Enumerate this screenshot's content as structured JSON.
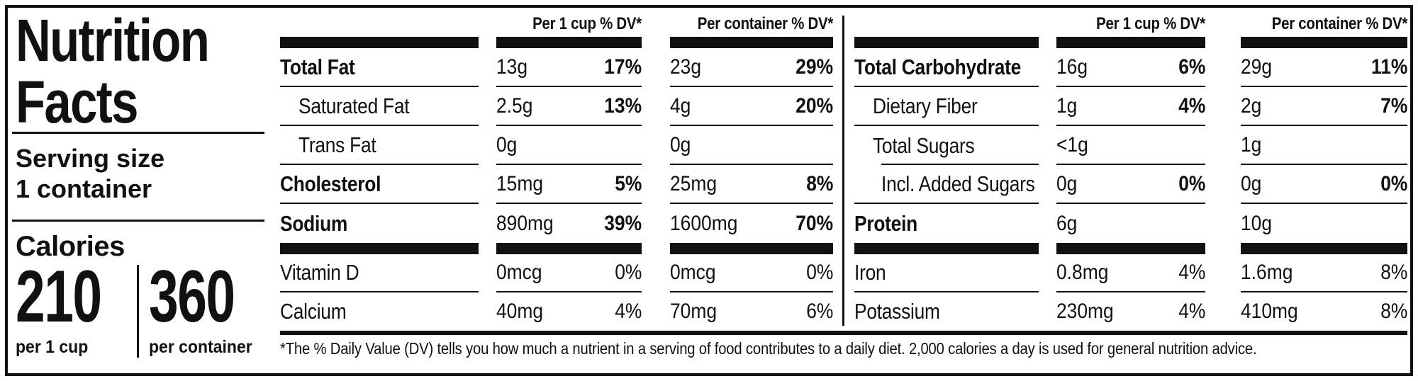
{
  "colors": {
    "ink": "#111111",
    "paper": "#ffffff"
  },
  "header_panel": {
    "title_line1": "Nutrition",
    "title_line2": "Facts",
    "serving_size_label": "Serving size",
    "serving_size_value": "1 container",
    "calories": {
      "label": "Calories",
      "per_cup_value": "210",
      "per_cup_caption": "per 1 cup",
      "per_container_value": "360",
      "per_container_caption": "per container"
    }
  },
  "column_headers": {
    "per_cup": "Per 1 cup % DV*",
    "per_container": "Per container % DV*"
  },
  "nutrient_table_left": {
    "main_rows": [
      {
        "name": "Total Fat",
        "name_bold": true,
        "indent": 0,
        "cup_amount": "13g",
        "cup_dv": "17%",
        "cont_amount": "23g",
        "cont_dv": "29%",
        "dv_bold": true
      },
      {
        "name": "Saturated Fat",
        "name_bold": false,
        "indent": 1,
        "cup_amount": "2.5g",
        "cup_dv": "13%",
        "cont_amount": "4g",
        "cont_dv": "20%",
        "dv_bold": true
      },
      {
        "name": "Trans Fat",
        "name_bold": false,
        "indent": 1,
        "cup_amount": "0g",
        "cup_dv": "",
        "cont_amount": "0g",
        "cont_dv": "",
        "dv_bold": false
      },
      {
        "name": "Cholesterol",
        "name_bold": true,
        "indent": 0,
        "cup_amount": "15mg",
        "cup_dv": "5%",
        "cont_amount": "25mg",
        "cont_dv": "8%",
        "dv_bold": true
      },
      {
        "name": "Sodium",
        "name_bold": true,
        "indent": 0,
        "cup_amount": "890mg",
        "cup_dv": "39%",
        "cont_amount": "1600mg",
        "cont_dv": "70%",
        "dv_bold": true
      }
    ],
    "micro_rows": [
      {
        "name": "Vitamin D",
        "name_bold": false,
        "indent": 0,
        "cup_amount": "0mcg",
        "cup_dv": "0%",
        "cont_amount": "0mcg",
        "cont_dv": "0%",
        "dv_bold": false
      },
      {
        "name": "Calcium",
        "name_bold": false,
        "indent": 0,
        "cup_amount": "40mg",
        "cup_dv": "4%",
        "cont_amount": "70mg",
        "cont_dv": "6%",
        "dv_bold": false
      }
    ]
  },
  "nutrient_table_right": {
    "main_rows": [
      {
        "name": "Total Carbohydrate",
        "name_bold": true,
        "indent": 0,
        "cup_amount": "16g",
        "cup_dv": "6%",
        "cont_amount": "29g",
        "cont_dv": "11%",
        "dv_bold": true
      },
      {
        "name": "Dietary Fiber",
        "name_bold": false,
        "indent": 1,
        "cup_amount": "1g",
        "cup_dv": "4%",
        "cont_amount": "2g",
        "cont_dv": "7%",
        "dv_bold": true
      },
      {
        "name": "Total Sugars",
        "name_bold": false,
        "indent": 1,
        "cup_amount": "<1g",
        "cup_dv": "",
        "cont_amount": "1g",
        "cont_dv": "",
        "dv_bold": false,
        "rule_below_indented": true
      },
      {
        "name": "Incl. Added Sugars",
        "name_bold": false,
        "indent": 2,
        "cup_amount": "0g",
        "cup_dv": "0%",
        "cont_amount": "0g",
        "cont_dv": "0%",
        "dv_bold": true
      },
      {
        "name": "Protein",
        "name_bold": true,
        "indent": 0,
        "cup_amount": "6g",
        "cup_dv": "",
        "cont_amount": "10g",
        "cont_dv": "",
        "dv_bold": false
      }
    ],
    "micro_rows": [
      {
        "name": "Iron",
        "name_bold": false,
        "indent": 0,
        "cup_amount": "0.8mg",
        "cup_dv": "4%",
        "cont_amount": "1.6mg",
        "cont_dv": "8%",
        "dv_bold": false
      },
      {
        "name": "Potassium",
        "name_bold": false,
        "indent": 0,
        "cup_amount": "230mg",
        "cup_dv": "4%",
        "cont_amount": "410mg",
        "cont_dv": "8%",
        "dv_bold": false
      }
    ]
  },
  "footnote": "*The % Daily Value (DV) tells you how much a nutrient in a serving of food contributes to a daily diet. 2,000 calories a day is used for general nutrition advice."
}
